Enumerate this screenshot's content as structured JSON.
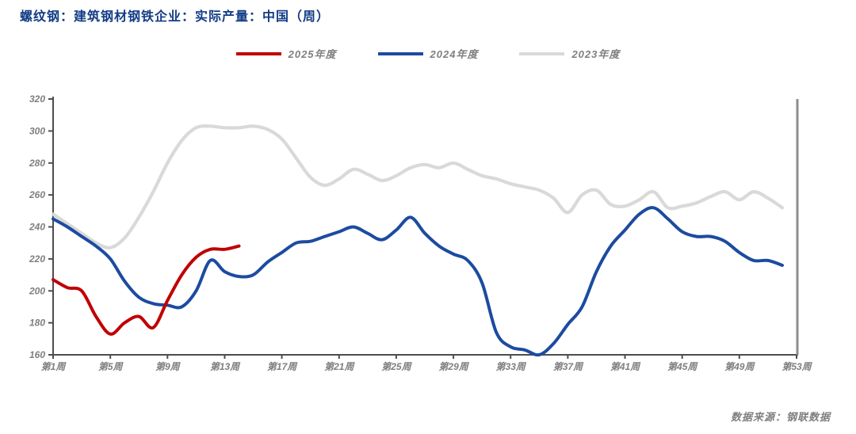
{
  "title": "螺纹钢：建筑钢材钢铁企业：实际产量：中国（周）",
  "source": "数据来源：钢联数据",
  "colors": {
    "title_text": "#123C85",
    "label_text": "#7F7F7F",
    "axis_line": "#4D4D4D",
    "right_spine": "#8C8C8C",
    "series_2025": "#C00000",
    "series_2024": "#1C4BA0",
    "series_2023": "#D9D9D9"
  },
  "legend": [
    {
      "label": "2025年度",
      "color": "#C00000"
    },
    {
      "label": "2024年度",
      "color": "#1C4BA0"
    },
    {
      "label": "2023年度",
      "color": "#D9D9D9"
    }
  ],
  "chart_data": {
    "type": "line",
    "title": "螺纹钢：建筑钢材钢铁企业：实际产量：中国（周）",
    "xlabel": "周",
    "ylabel": "",
    "ylim": [
      160,
      320
    ],
    "y_ticks": [
      160,
      180,
      200,
      220,
      240,
      260,
      280,
      300,
      320
    ],
    "x_range": [
      1,
      53
    ],
    "x_tick_weeks": [
      1,
      5,
      9,
      13,
      17,
      21,
      25,
      29,
      33,
      37,
      41,
      45,
      49,
      53
    ],
    "x_tick_labels": [
      "第1周",
      "第5周",
      "第9周",
      "第13周",
      "第17周",
      "第21周",
      "第25周",
      "第29周",
      "第33周",
      "第37周",
      "第41周",
      "第45周",
      "第49周",
      "第53周"
    ],
    "grid": false,
    "legend_position": "top",
    "series": [
      {
        "name": "2025年度",
        "color": "#C00000",
        "start_week": 1,
        "values": [
          207,
          202,
          200,
          184,
          173,
          180,
          184,
          177,
          194,
          210,
          221,
          226,
          226,
          228
        ]
      },
      {
        "name": "2024年度",
        "color": "#1C4BA0",
        "start_week": 1,
        "values": [
          245,
          240,
          234,
          228,
          220,
          206,
          196,
          192,
          191,
          190,
          200,
          219,
          212,
          209,
          210,
          218,
          224,
          230,
          231,
          234,
          237,
          240,
          236,
          232,
          238,
          246,
          236,
          228,
          223,
          219,
          205,
          174,
          165,
          163,
          160,
          167,
          179,
          190,
          212,
          228,
          238,
          248,
          252,
          245,
          237,
          234,
          234,
          231,
          224,
          219,
          219,
          216
        ]
      },
      {
        "name": "2023年度",
        "color": "#D9D9D9",
        "start_week": 1,
        "values": [
          248,
          242,
          236,
          230,
          227,
          233,
          246,
          262,
          280,
          294,
          302,
          303,
          302,
          302,
          303,
          301,
          295,
          283,
          271,
          266,
          270,
          276,
          273,
          269,
          272,
          277,
          279,
          277,
          280,
          276,
          272,
          270,
          267,
          265,
          263,
          258,
          249,
          260,
          263,
          254,
          253,
          257,
          262,
          252,
          253,
          255,
          259,
          262,
          257,
          262,
          258,
          252
        ]
      }
    ]
  }
}
